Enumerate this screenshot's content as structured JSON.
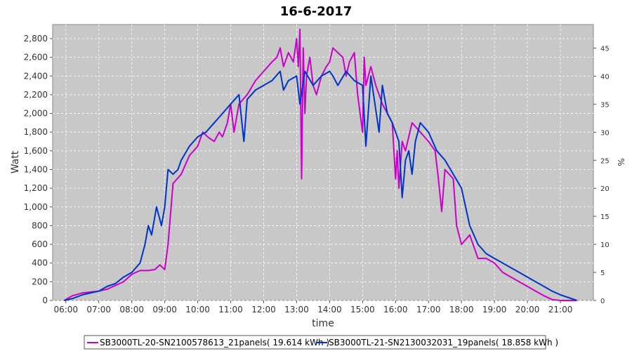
{
  "chart_data": {
    "type": "line",
    "title": "16-6-2017",
    "xlabel": "time",
    "ylabel": "Watt",
    "y2label": "%",
    "xlim": [
      5.6,
      22.0
    ],
    "ylim": [
      0,
      2950
    ],
    "y2lim": [
      0,
      49.2
    ],
    "x_ticks": [
      "06:00",
      "07:00",
      "08:00",
      "09:00",
      "10:00",
      "11:00",
      "12:00",
      "13:00",
      "14:00",
      "15:00",
      "16:00",
      "17:00",
      "18:00",
      "19:00",
      "20:00",
      "21:00"
    ],
    "y_ticks": [
      "0",
      "200",
      "400",
      "600",
      "800",
      "1,000",
      "1,200",
      "1,400",
      "1,600",
      "1,800",
      "2,000",
      "2,200",
      "2,400",
      "2,600",
      "2,800"
    ],
    "y2_ticks": [
      "0",
      "5",
      "10",
      "15",
      "20",
      "25",
      "30",
      "35",
      "40",
      "45"
    ],
    "grid": true,
    "background": "#c8c8c8",
    "legend_position": "bottom",
    "series": [
      {
        "name": "SB3000TL-20-SN2100578613_21panels",
        "legend_label": "SB3000TL-20-SN2100578613_21panels( 19.614 kWh )",
        "color": "#cc00cc",
        "x": [
          5.95,
          6.2,
          6.5,
          6.75,
          7.0,
          7.25,
          7.5,
          7.75,
          8.0,
          8.25,
          8.5,
          8.7,
          8.85,
          9.0,
          9.1,
          9.25,
          9.5,
          9.75,
          10.0,
          10.15,
          10.3,
          10.5,
          10.65,
          10.75,
          10.9,
          11.0,
          11.1,
          11.25,
          11.5,
          11.75,
          12.0,
          12.25,
          12.4,
          12.5,
          12.6,
          12.75,
          12.9,
          13.0,
          13.05,
          13.1,
          13.15,
          13.2,
          13.25,
          13.3,
          13.4,
          13.5,
          13.6,
          13.75,
          13.9,
          14.0,
          14.1,
          14.25,
          14.4,
          14.5,
          14.6,
          14.75,
          14.85,
          15.0,
          15.05,
          15.1,
          15.25,
          15.4,
          15.5,
          15.6,
          15.75,
          15.9,
          16.0,
          16.05,
          16.1,
          16.2,
          16.3,
          16.5,
          16.75,
          17.0,
          17.2,
          17.3,
          17.4,
          17.5,
          17.75,
          17.85,
          18.0,
          18.25,
          18.5,
          18.75,
          19.0,
          19.25,
          19.5,
          19.75,
          20.0,
          20.25,
          20.5,
          20.75,
          21.0,
          21.25,
          21.5
        ],
        "y": [
          0,
          50,
          80,
          90,
          100,
          120,
          160,
          200,
          280,
          320,
          320,
          330,
          380,
          330,
          600,
          1250,
          1350,
          1550,
          1650,
          1800,
          1750,
          1700,
          1800,
          1750,
          1900,
          2100,
          1800,
          2100,
          2200,
          2350,
          2450,
          2550,
          2600,
          2700,
          2500,
          2650,
          2550,
          2800,
          2500,
          2900,
          1300,
          2700,
          2000,
          2400,
          2600,
          2300,
          2200,
          2400,
          2500,
          2550,
          2700,
          2650,
          2600,
          2400,
          2550,
          2650,
          2200,
          1800,
          2600,
          2300,
          2500,
          2300,
          2200,
          2100,
          2000,
          1900,
          1300,
          1600,
          1200,
          1700,
          1600,
          1900,
          1800,
          1700,
          1600,
          1300,
          950,
          1400,
          1300,
          800,
          600,
          700,
          450,
          450,
          400,
          300,
          250,
          200,
          150,
          100,
          50,
          10,
          0,
          0,
          0
        ],
        "line_width": 2
      },
      {
        "name": "SB3000TL-21-SN2130032031_19panels",
        "legend_label": "SB3000TL-21-SN2130032031_19panels( 18.858 kWh )",
        "color": "#0033cc",
        "x": [
          5.95,
          6.2,
          6.5,
          6.75,
          7.0,
          7.25,
          7.5,
          7.75,
          8.0,
          8.25,
          8.4,
          8.5,
          8.6,
          8.75,
          8.9,
          9.0,
          9.1,
          9.25,
          9.4,
          9.5,
          9.75,
          10.0,
          10.25,
          10.5,
          10.75,
          11.0,
          11.25,
          11.4,
          11.5,
          11.75,
          12.0,
          12.25,
          12.5,
          12.6,
          12.75,
          13.0,
          13.1,
          13.25,
          13.5,
          13.75,
          14.0,
          14.1,
          14.25,
          14.5,
          14.75,
          15.0,
          15.1,
          15.25,
          15.5,
          15.6,
          15.75,
          15.9,
          16.0,
          16.1,
          16.2,
          16.3,
          16.4,
          16.5,
          16.6,
          16.75,
          17.0,
          17.25,
          17.5,
          17.75,
          18.0,
          18.25,
          18.5,
          18.75,
          19.0,
          19.25,
          19.5,
          19.75,
          20.0,
          20.25,
          20.5,
          20.75,
          21.0,
          21.25,
          21.5
        ],
        "y": [
          0,
          20,
          60,
          80,
          100,
          150,
          180,
          250,
          300,
          400,
          600,
          800,
          700,
          1000,
          800,
          1000,
          1400,
          1350,
          1400,
          1500,
          1650,
          1750,
          1800,
          1900,
          2000,
          2100,
          2200,
          1700,
          2150,
          2250,
          2300,
          2350,
          2450,
          2250,
          2350,
          2400,
          2100,
          2450,
          2300,
          2400,
          2450,
          2400,
          2300,
          2450,
          2350,
          2300,
          1650,
          2400,
          1800,
          2300,
          2000,
          1900,
          1800,
          1700,
          1100,
          1500,
          1600,
          1350,
          1700,
          1900,
          1800,
          1600,
          1500,
          1350,
          1200,
          800,
          600,
          500,
          450,
          400,
          350,
          300,
          250,
          200,
          150,
          100,
          60,
          30,
          0
        ],
        "line_width": 2
      }
    ]
  }
}
